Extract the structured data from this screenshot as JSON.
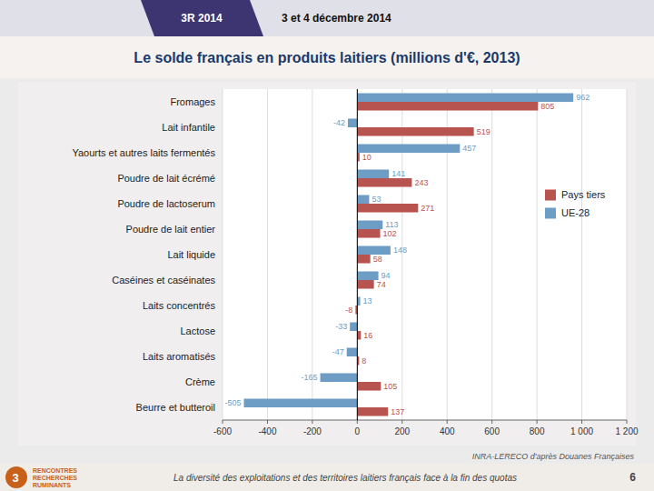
{
  "chart_data": {
    "type": "bar",
    "orientation": "horizontal",
    "title": "Le solde français en produits laitiers (millions d'€, 2013)",
    "categories": [
      "Fromages",
      "Lait infantile",
      "Yaourts et autres laits fermentés",
      "Poudre de lait écrémé",
      "Poudre de lactoserum",
      "Poudre de lait entier",
      "Lait liquide",
      "Caséines et caséinates",
      "Laits concentrés",
      "Lactose",
      "Laits aromatisés",
      "Crème",
      "Beurre et butteroil"
    ],
    "series": [
      {
        "name": "Pays tiers",
        "color": "#b85450",
        "values": [
          805,
          519,
          10,
          243,
          271,
          102,
          58,
          74,
          -8,
          16,
          8,
          105,
          137
        ]
      },
      {
        "name": "UE-28",
        "color": "#6d9dc5",
        "values": [
          962,
          -42,
          457,
          141,
          53,
          113,
          148,
          94,
          13,
          -33,
          -47,
          -165,
          -505
        ]
      }
    ],
    "xlim": [
      -600,
      1200
    ],
    "xticks": [
      -600,
      -400,
      -200,
      0,
      200,
      400,
      600,
      800,
      {
        "value": 1000,
        "label": "1 000"
      },
      {
        "value": 1200,
        "label": "1 200"
      }
    ],
    "grid": true,
    "legend": "upper right",
    "data_labels": true,
    "annotations": [
      "3R 2014",
      "3 et 4 décembre 2014",
      "INRA-LERECO d'après Douanes Françaises",
      "La diversité des exploitations et des territoires laitiers français face à la fin des quotas",
      "6",
      "3",
      "RENCONTRES",
      "RECHERCHES",
      "RUMINANTS"
    ]
  }
}
